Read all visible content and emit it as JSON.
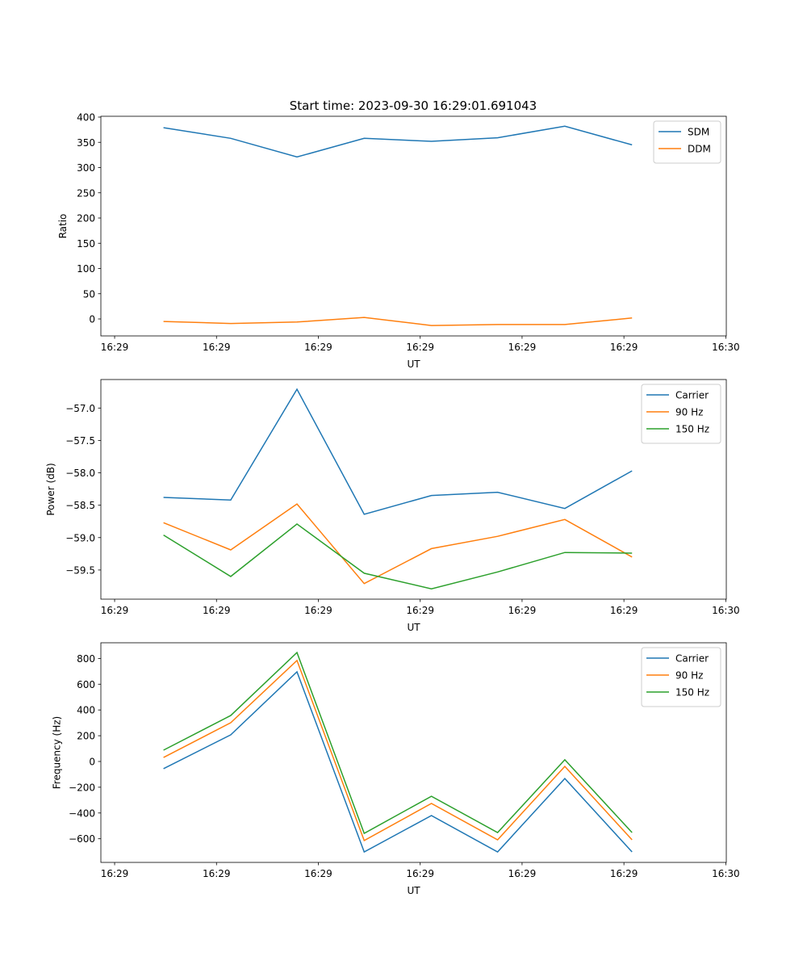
{
  "title": "Start time: 2023-09-30 16:29:01.691043",
  "colors": {
    "blue": "#1f77b4",
    "orange": "#ff7f0e",
    "green": "#2ca02c"
  },
  "chart_data": [
    {
      "type": "line",
      "xlabel": "UT",
      "ylabel": "Ratio",
      "x_unit": "seconds after 16:29:00",
      "x": [
        4.8,
        11.4,
        17.9,
        24.5,
        31.1,
        37.6,
        44.2,
        50.8
      ],
      "xlim": [
        -1.35,
        60.05
      ],
      "xticks": [
        0,
        10,
        20,
        30,
        40,
        50,
        60
      ],
      "xtick_labels": [
        "16:29",
        "16:29",
        "16:29",
        "16:29",
        "16:29",
        "16:29",
        "16:30"
      ],
      "ylim": [
        -33.6,
        401.6
      ],
      "yticks": [
        0,
        50,
        100,
        150,
        200,
        250,
        300,
        350,
        400
      ],
      "ytick_labels": [
        "0",
        "50",
        "100",
        "150",
        "200",
        "250",
        "300",
        "350",
        "400"
      ],
      "legend": "top-right",
      "series": [
        {
          "name": "SDM",
          "color": "#1f77b4",
          "values": [
            379,
            358,
            321,
            358,
            352,
            359,
            382,
            345
          ]
        },
        {
          "name": "DDM",
          "color": "#ff7f0e",
          "values": [
            -5,
            -9,
            -6,
            3,
            -13,
            -11,
            -11,
            2
          ]
        }
      ]
    },
    {
      "type": "line",
      "xlabel": "UT",
      "ylabel": "Power (dB)",
      "x_unit": "seconds after 16:29:00",
      "x": [
        4.8,
        11.4,
        17.9,
        24.5,
        31.1,
        37.6,
        44.2,
        50.8
      ],
      "xlim": [
        -1.35,
        60.05
      ],
      "xticks": [
        0,
        10,
        20,
        30,
        40,
        50,
        60
      ],
      "xtick_labels": [
        "16:29",
        "16:29",
        "16:29",
        "16:29",
        "16:29",
        "16:29",
        "16:30"
      ],
      "ylim": [
        -59.95,
        -56.56
      ],
      "yticks": [
        -57.0,
        -57.5,
        -58.0,
        -58.5,
        -59.0,
        -59.5
      ],
      "ytick_labels": [
        "−57.0",
        "−57.5",
        "−58.0",
        "−58.5",
        "−59.0",
        "−59.5"
      ],
      "legend": "top-right",
      "series": [
        {
          "name": "Carrier",
          "color": "#1f77b4",
          "values": [
            -58.38,
            -58.42,
            -56.71,
            -58.64,
            -58.35,
            -58.3,
            -58.55,
            -57.97
          ]
        },
        {
          "name": "90 Hz",
          "color": "#ff7f0e",
          "values": [
            -58.77,
            -59.19,
            -58.48,
            -59.71,
            -59.17,
            -58.98,
            -58.72,
            -59.3
          ]
        },
        {
          "name": "150 Hz",
          "color": "#2ca02c",
          "values": [
            -58.96,
            -59.6,
            -58.79,
            -59.55,
            -59.79,
            -59.53,
            -59.23,
            -59.24
          ]
        }
      ]
    },
    {
      "type": "line",
      "xlabel": "UT",
      "ylabel": "Frequency (Hz)",
      "x_unit": "seconds after 16:29:00",
      "x": [
        4.8,
        11.4,
        17.9,
        24.5,
        31.1,
        37.6,
        44.2,
        50.8
      ],
      "xlim": [
        -1.35,
        60.05
      ],
      "xticks": [
        0,
        10,
        20,
        30,
        40,
        50,
        60
      ],
      "xtick_labels": [
        "16:29",
        "16:29",
        "16:29",
        "16:29",
        "16:29",
        "16:29",
        "16:30"
      ],
      "ylim": [
        -783.7,
        921.6
      ],
      "yticks": [
        800,
        600,
        400,
        200,
        0,
        -200,
        -400,
        -600
      ],
      "ytick_labels": [
        "800",
        "600",
        "400",
        "200",
        "0",
        "−200",
        "−400",
        "−600"
      ],
      "legend": "top-right",
      "series": [
        {
          "name": "Carrier",
          "color": "#1f77b4",
          "values": [
            -56,
            207,
            696,
            -702,
            -420,
            -702,
            -132,
            -702
          ]
        },
        {
          "name": "90 Hz",
          "color": "#ff7f0e",
          "values": [
            31,
            301,
            784,
            -614,
            -326,
            -608,
            -38,
            -608
          ]
        },
        {
          "name": "150 Hz",
          "color": "#2ca02c",
          "values": [
            88,
            357,
            846,
            -558,
            -270,
            -552,
            13,
            -552
          ]
        }
      ]
    }
  ]
}
